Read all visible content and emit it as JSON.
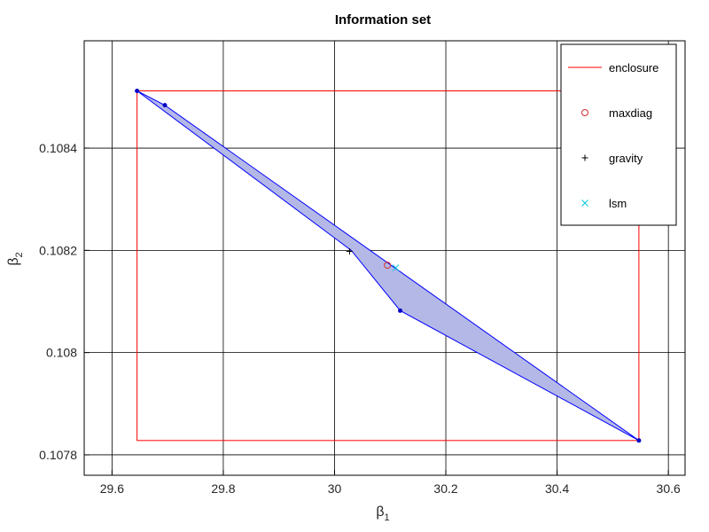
{
  "chart_data": {
    "type": "scatter",
    "title": "Information set",
    "xlabel": {
      "base": "β",
      "sub": "1"
    },
    "ylabel": {
      "base": "β",
      "sub": "2"
    },
    "xlim": [
      29.55,
      30.63
    ],
    "ylim": [
      0.10776,
      0.10861
    ],
    "xticks": [
      29.6,
      29.8,
      30,
      30.2,
      30.4,
      30.6
    ],
    "xtick_labels": [
      "29.6",
      "29.8",
      "30",
      "30.2",
      "30.4",
      "30.6"
    ],
    "yticks": [
      0.1078,
      0.108,
      0.1082,
      0.1084
    ],
    "ytick_labels": [
      "0.1078",
      "0.108",
      "0.1082",
      "0.1084"
    ],
    "grid": true,
    "legend_position": "top-right",
    "polygon": {
      "fill_color": "#b4b8e6",
      "edge_color": "#0000ff",
      "vertices": [
        {
          "x": 29.645,
          "y": 0.108512
        },
        {
          "x": 29.695,
          "y": 0.108484
        },
        {
          "x": 30.547,
          "y": 0.107828
        },
        {
          "x": 30.118,
          "y": 0.108082
        },
        {
          "x": 30.03,
          "y": 0.1082
        }
      ]
    },
    "polygon_markers": [
      {
        "x": 29.645,
        "y": 0.108512
      },
      {
        "x": 29.695,
        "y": 0.108484
      },
      {
        "x": 30.118,
        "y": 0.108082
      },
      {
        "x": 30.547,
        "y": 0.107828
      }
    ],
    "enclosure": {
      "color": "#ff0000",
      "xmin": 29.645,
      "xmax": 30.547,
      "ymin": 0.107828,
      "ymax": 0.108512
    },
    "series": [
      {
        "name": "maxdiag",
        "marker": "circle",
        "color": "#d42a2a",
        "x": [
          30.095
        ],
        "y": [
          0.108171
        ]
      },
      {
        "name": "gravity",
        "marker": "plus",
        "color": "#000000",
        "x": [
          30.027
        ],
        "y": [
          0.108198
        ]
      },
      {
        "name": "lsm",
        "marker": "cross",
        "color": "#00c8d8",
        "x": [
          30.11
        ],
        "y": [
          0.108166
        ]
      }
    ],
    "legend": [
      {
        "label": "enclosure",
        "marker": "line",
        "color": "#ff0000"
      },
      {
        "label": "maxdiag",
        "marker": "circle",
        "color": "#d42a2a"
      },
      {
        "label": "gravity",
        "marker": "plus",
        "color": "#000000"
      },
      {
        "label": "lsm",
        "marker": "cross",
        "color": "#00c8d8"
      }
    ]
  }
}
